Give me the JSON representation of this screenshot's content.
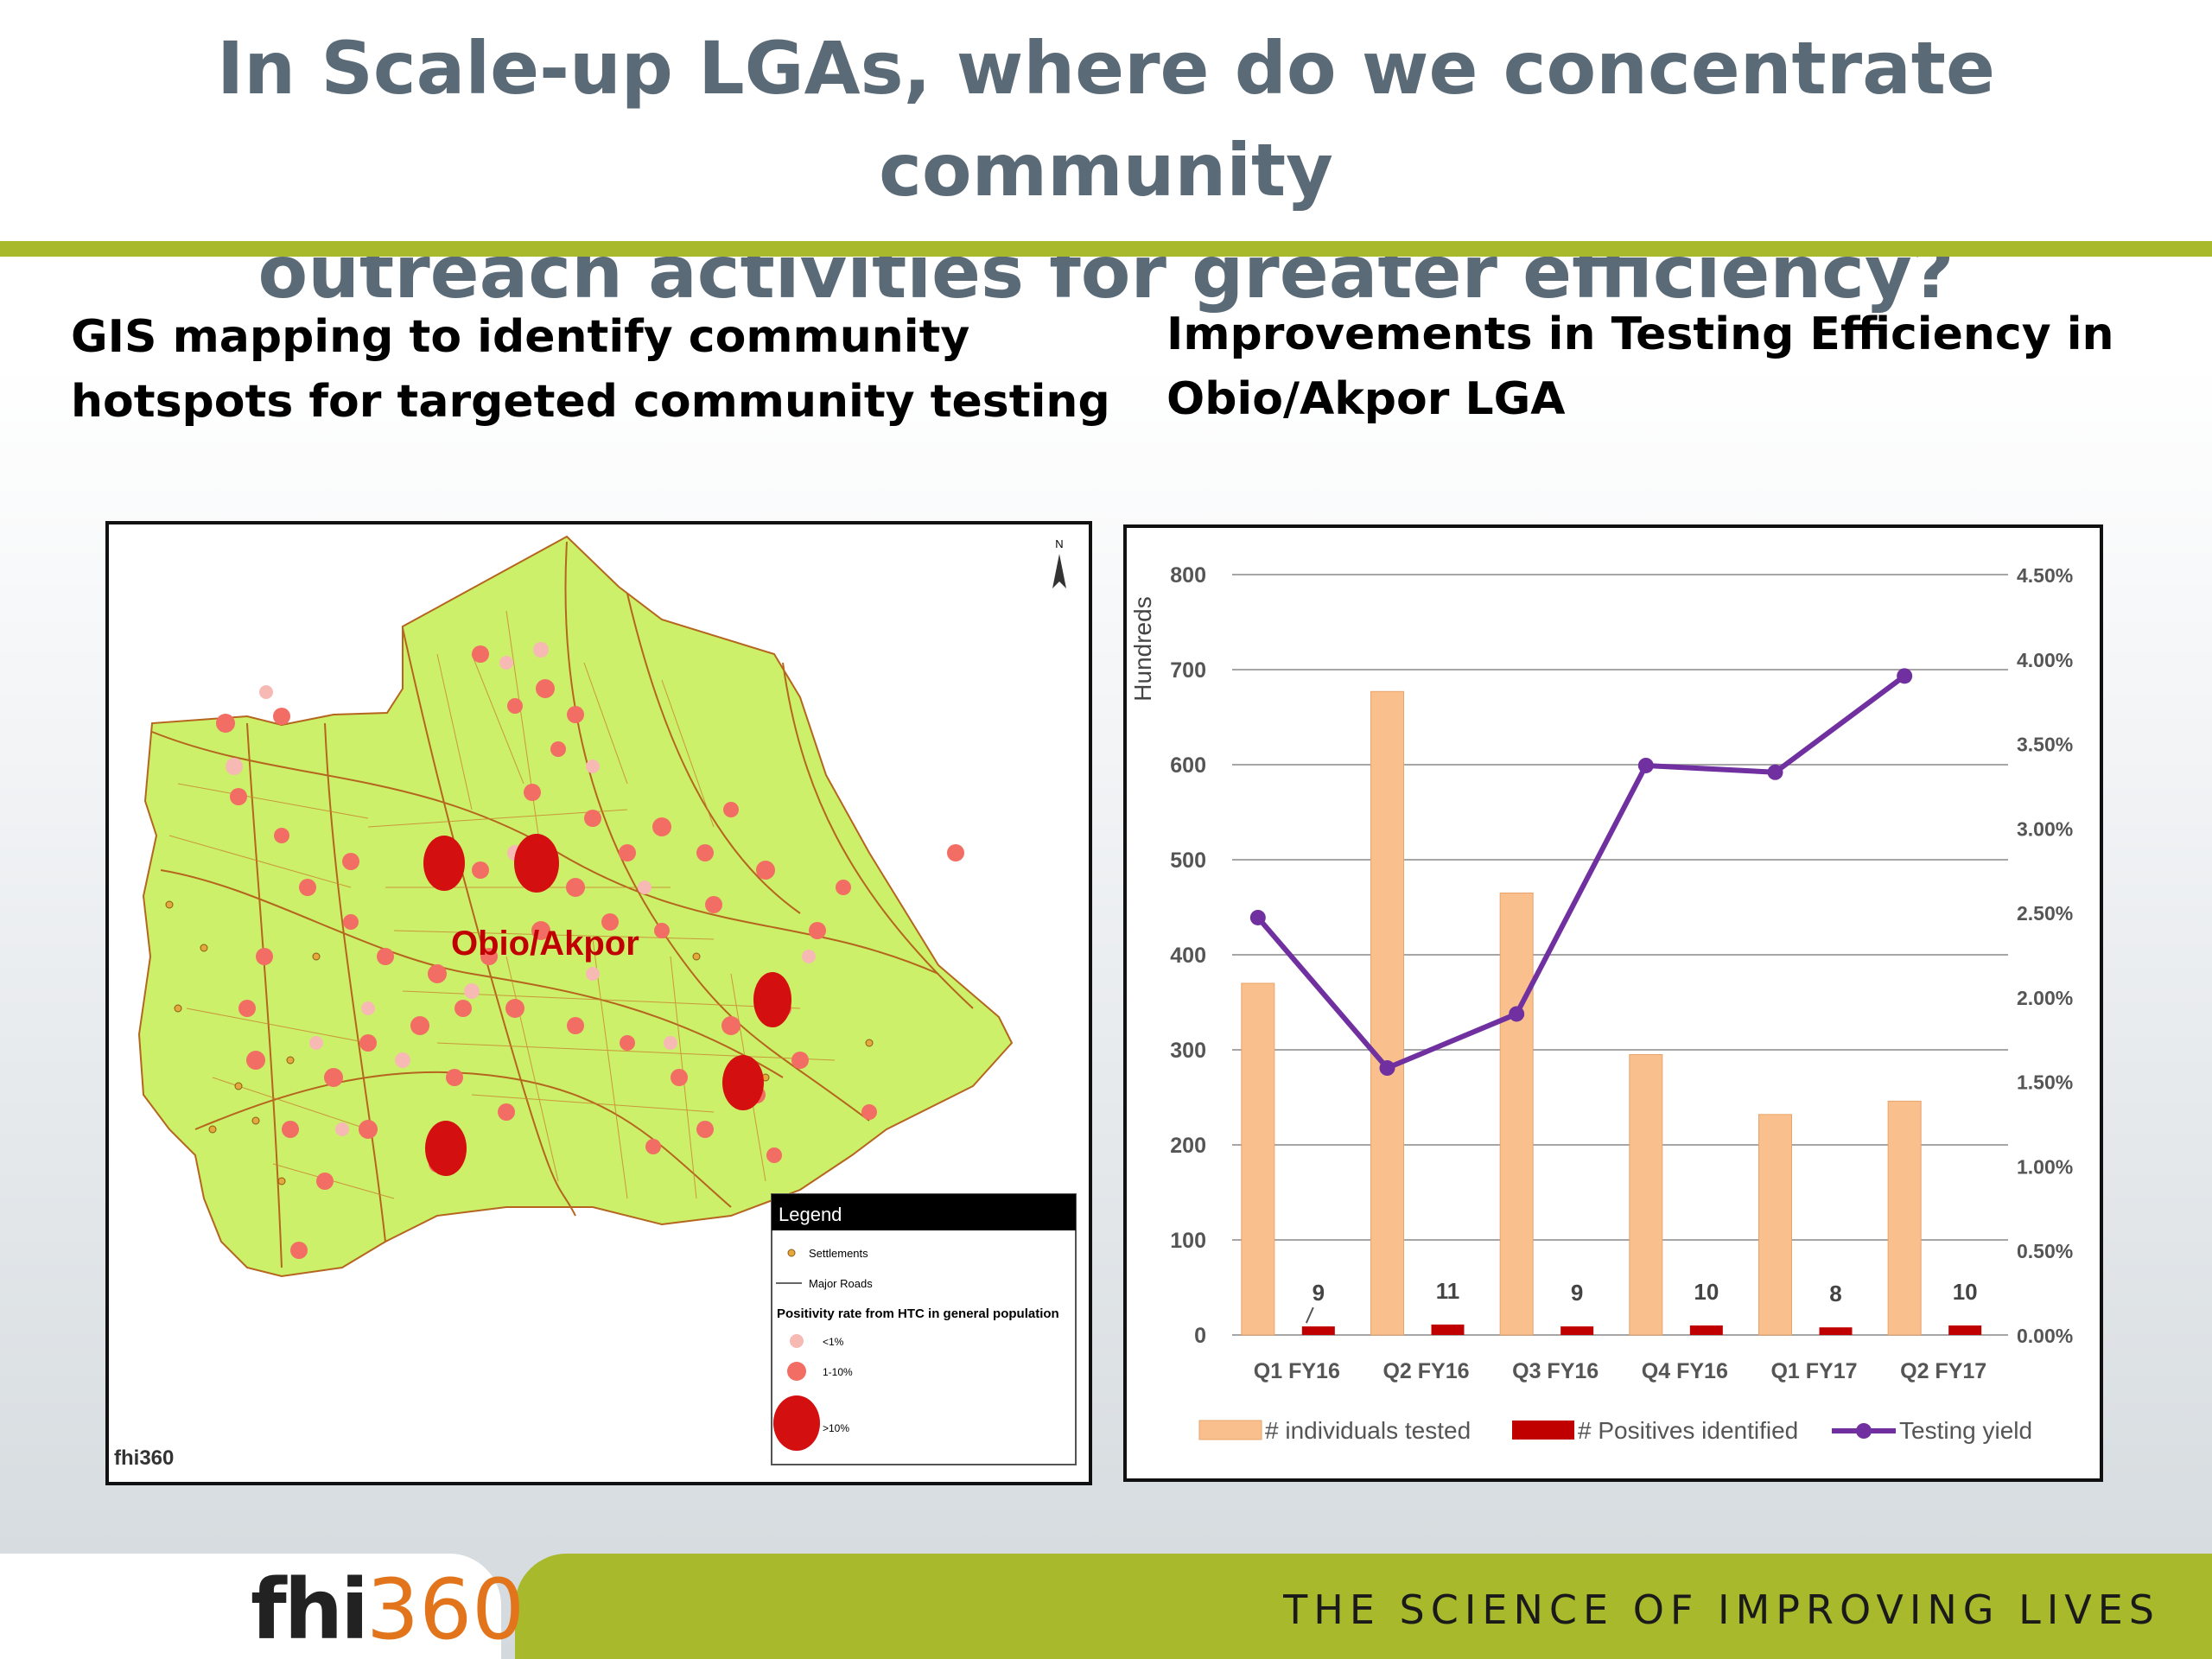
{
  "slide": {
    "title_line1": "In Scale-up LGAs, where do we concentrate community",
    "title_line2": "outreach activities for greater efficiency?",
    "left_heading_line1": "GIS mapping to identify community",
    "left_heading_line2": "hotspots for targeted community testing",
    "right_heading_line1": "Improvements in Testing Efficiency in",
    "right_heading_line2": "Obio/Akpor LGA",
    "footer_logo_main": "fhi",
    "footer_logo_num": "360",
    "tagline": "THE SCIENCE OF IMPROVING LIVES"
  },
  "map": {
    "area_label": "Obio/Akpor",
    "north_label": "N",
    "small_logo": "fhi360",
    "legend": {
      "title": "Legend",
      "settlements": "Settlements",
      "roads": "Major Roads",
      "positivity_title": "Positivity rate from HTC in general population",
      "low": "<1%",
      "mid": "1-10%",
      "high": ">10%"
    },
    "colors": {
      "land": "#ccf06a",
      "roads": "#b5651d",
      "low": "#f7b9b4",
      "mid": "#f26d63",
      "high": "#d40f0f"
    }
  },
  "chart_data": {
    "type": "bar",
    "categories": [
      "Q1 FY16",
      "Q2 FY16",
      "Q3 FY16",
      "Q4 FY16",
      "Q1 FY17",
      "Q2 FY17"
    ],
    "series": [
      {
        "name": "# individuals tested",
        "type": "bar",
        "axis": "left",
        "values": [
          370,
          677,
          465,
          295,
          232,
          246
        ],
        "color": "#f9c08e"
      },
      {
        "name": "# Positives identified",
        "type": "bar",
        "axis": "left",
        "values": [
          9,
          11,
          9,
          10,
          8,
          10
        ],
        "data_labels": [
          "9",
          "11",
          "9",
          "10",
          "8",
          "10"
        ],
        "color": "#c00000"
      },
      {
        "name": "Testing yield",
        "type": "line",
        "axis": "right",
        "values": [
          2.47,
          1.58,
          1.9,
          3.37,
          3.33,
          3.9
        ],
        "color": "#7030a0"
      }
    ],
    "ylabel": "Hundreds",
    "ylim": [
      0,
      800
    ],
    "yticks": [
      "0",
      "100",
      "200",
      "300",
      "400",
      "500",
      "600",
      "700",
      "800"
    ],
    "y2lim": [
      0,
      4.5
    ],
    "y2ticks": [
      "0.00%",
      "0.50%",
      "1.00%",
      "1.50%",
      "2.00%",
      "2.50%",
      "3.00%",
      "3.50%",
      "4.00%",
      "4.50%"
    ],
    "grid": true,
    "legend_position": "bottom"
  }
}
